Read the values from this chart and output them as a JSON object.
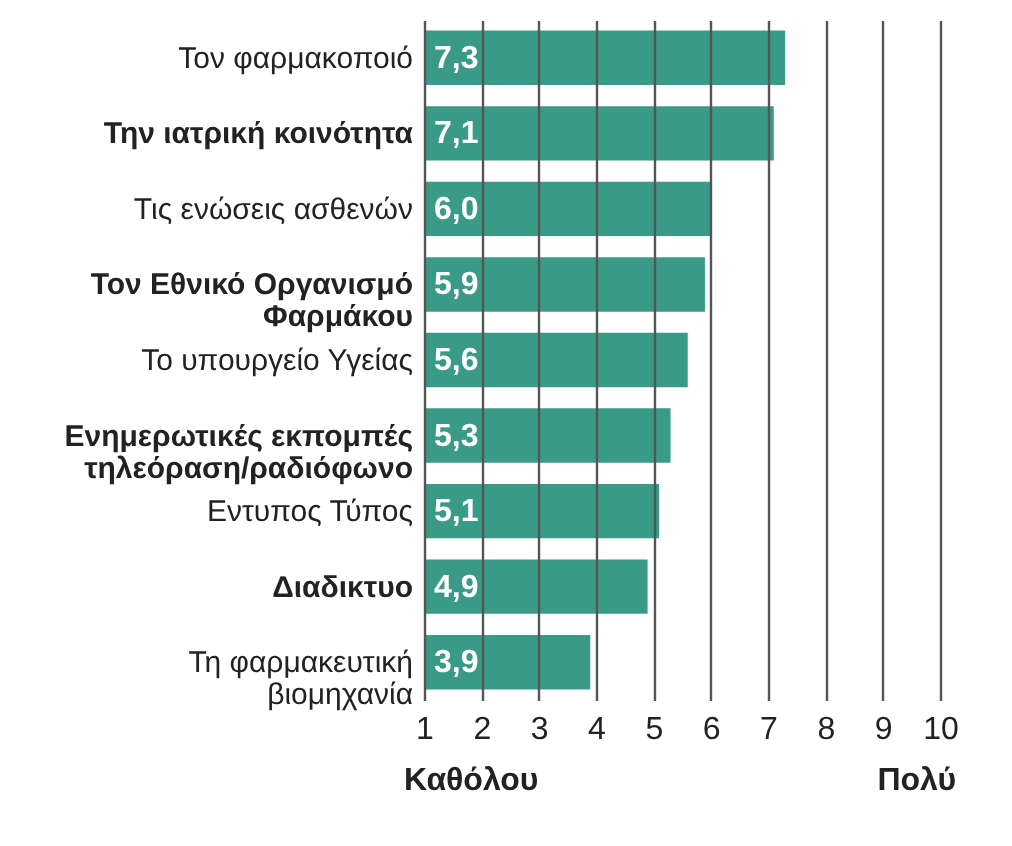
{
  "chart_data": {
    "type": "bar",
    "orientation": "horizontal",
    "categories": [
      "Τον φαρμακοποιό",
      "Την ιατρική κοινότητα",
      "Τις ενώσεις ασθενών",
      "Τον Εθνικό Οργανισμό Φαρμάκου",
      "Το υπουργείο Υγείας",
      "Ενημερωτικές εκπομπές τηλεόραση/ραδιόφωνο",
      "Εντυπος Τύπος",
      "Διαδικτυο",
      "Τη φαρμακευτική βιομηχανία"
    ],
    "values": [
      7.3,
      7.1,
      6.0,
      5.9,
      5.6,
      5.3,
      5.1,
      4.9,
      3.9
    ],
    "value_labels": [
      "7,3",
      "7,1",
      "6,0",
      "5,9",
      "5,6",
      "5,3",
      "5,1",
      "4,9",
      "3,9"
    ],
    "color": "#3a9a88",
    "xlim": [
      1,
      10
    ],
    "xticks": [
      1,
      2,
      3,
      4,
      5,
      6,
      7,
      8,
      9,
      10
    ],
    "grid": "x",
    "annotations": [
      "Καθόλου",
      "Πολύ"
    ]
  }
}
